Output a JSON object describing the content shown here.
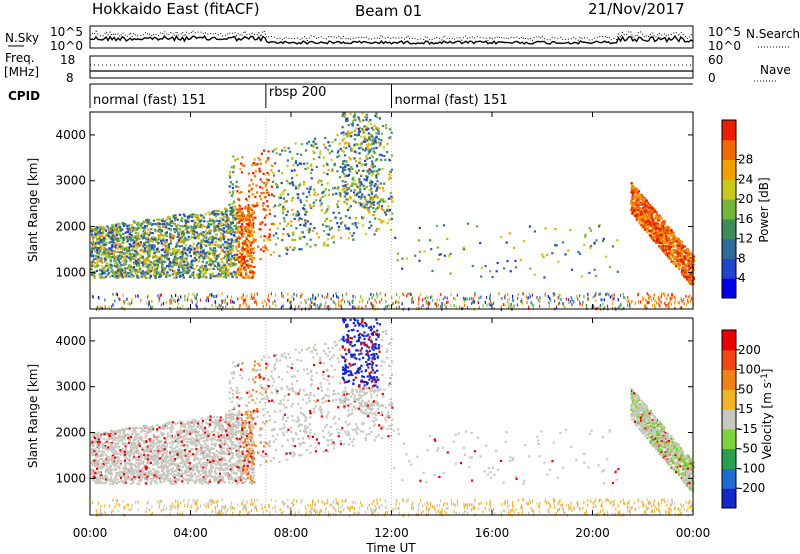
{
  "header": {
    "station": "Hokkaido East (fitACF)",
    "beam": "Beam 01",
    "date": "21/Nov/2017"
  },
  "noise_panel": {
    "left_label": "N.Sky",
    "right_label": "N.Search",
    "left_ticks": [
      "10^5",
      "10^0"
    ],
    "right_ticks": [
      "10^5",
      "10^0"
    ]
  },
  "freq_panel": {
    "left_label_1": "Freq.",
    "left_label_2": "[MHz]",
    "right_label": "Nave",
    "left_ticks": [
      "18",
      "8"
    ],
    "right_ticks": [
      "60",
      "0"
    ]
  },
  "cpid_panel": {
    "label": "CPID",
    "segments": [
      {
        "name": "normal (fast) 151",
        "start_h": 0,
        "end_h": 7.0
      },
      {
        "name": "rbsp 200",
        "start_h": 7.0,
        "end_h": 12.0
      },
      {
        "name": "normal (fast) 151",
        "start_h": 12.0,
        "end_h": 24.0
      }
    ]
  },
  "chart_data": [
    {
      "type": "heatmap",
      "panel": "power",
      "ylabel": "Slant Range [km]",
      "xlim_hours": [
        0,
        24
      ],
      "ylim_km": [
        200,
        4500
      ],
      "yticks": [
        "1000",
        "2000",
        "3000",
        "4000"
      ],
      "colorbar": {
        "label": "Power [dB]",
        "ticks": [
          "4",
          "8",
          "12",
          "16",
          "20",
          "24",
          "28"
        ],
        "colors": [
          "#0000e6",
          "#2244cc",
          "#2f6b9a",
          "#3d8c5a",
          "#74b63b",
          "#c8c81e",
          "#f0a000",
          "#f06a00",
          "#e62000"
        ]
      }
    },
    {
      "type": "heatmap",
      "panel": "velocity",
      "ylabel": "Slant Range [km]",
      "xlim_hours": [
        0,
        24
      ],
      "ylim_km": [
        200,
        4500
      ],
      "yticks": [
        "1000",
        "2000",
        "3000",
        "4000"
      ],
      "colorbar": {
        "label": "Velocity [m s^-1]",
        "ticks": [
          "200",
          "100",
          "50",
          "15",
          "-15",
          "-50",
          "-100",
          "-200"
        ],
        "colors": [
          "#1428c8",
          "#1e6ed2",
          "#28a050",
          "#7ed23c",
          "#c8c8c0",
          "#f0b428",
          "#f08214",
          "#f04614",
          "#e60000"
        ]
      }
    }
  ],
  "x_axis": {
    "ticks": [
      "00:00",
      "04:00",
      "08:00",
      "12:00",
      "16:00",
      "20:00",
      "00:00"
    ],
    "label": "Time UT"
  }
}
